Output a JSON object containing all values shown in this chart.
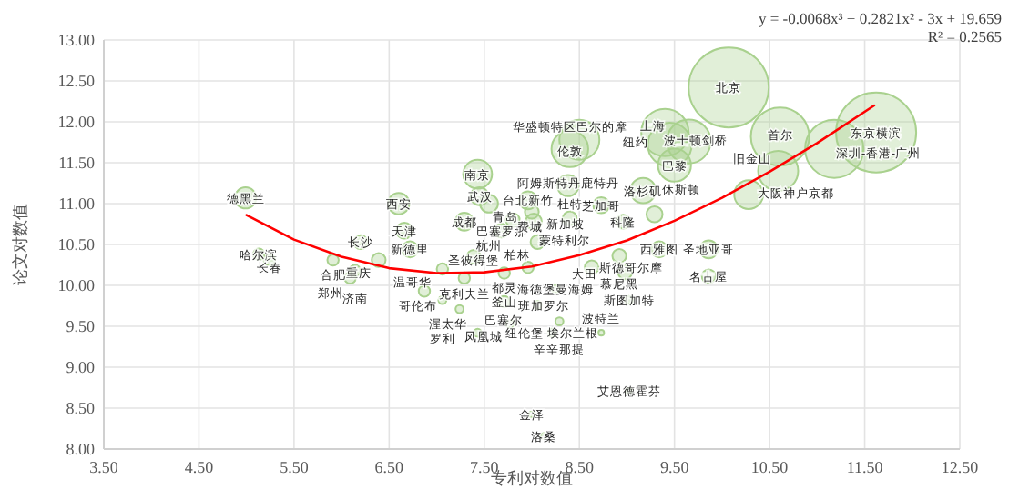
{
  "chart_data": {
    "type": "bubble",
    "xlabel": "专利对数值",
    "ylabel": "论文对数值",
    "xlim": [
      3.5,
      12.5
    ],
    "ylim": [
      8,
      13
    ],
    "xticks": [
      {
        "value": 3.5,
        "label": "3.50"
      },
      {
        "value": 4.5,
        "label": "4.50"
      },
      {
        "value": 5.5,
        "label": "5.50"
      },
      {
        "value": 6.5,
        "label": "6.50"
      },
      {
        "value": 7.5,
        "label": "7.50"
      },
      {
        "value": 8.5,
        "label": "8.50"
      },
      {
        "value": 9.5,
        "label": "9.50"
      },
      {
        "value": 10.5,
        "label": "10.50"
      },
      {
        "value": 11.5,
        "label": "11.50"
      },
      {
        "value": 12.5,
        "label": "12.50"
      }
    ],
    "yticks": [
      {
        "value": 8,
        "label": "8.00"
      },
      {
        "value": 8.5,
        "label": "8.50"
      },
      {
        "value": 9,
        "label": "9.00"
      },
      {
        "value": 9.5,
        "label": "9.50"
      },
      {
        "value": 10,
        "label": "10.00"
      },
      {
        "value": 10.5,
        "label": "10.50"
      },
      {
        "value": 11,
        "label": "11.00"
      },
      {
        "value": 11.5,
        "label": "11.50"
      },
      {
        "value": 12,
        "label": "12.00"
      },
      {
        "value": 12.5,
        "label": "12.50"
      },
      {
        "value": 13,
        "label": "13.00"
      }
    ],
    "grid": true,
    "series": [
      {
        "type": "bubble",
        "color": "#a9d18e",
        "x": [
          10.07,
          11.62,
          10.61,
          11.18,
          9.4,
          9.45,
          9.65,
          9.5,
          10.59,
          10.28,
          8.4,
          8.4,
          7.43,
          8.38,
          9.17,
          4.99,
          6.6,
          7.45,
          7.96,
          7.55,
          7.29,
          6.66,
          8.73,
          9.29,
          8.96,
          8.02,
          7.8,
          8.0,
          8.4,
          7.68,
          8.06,
          6.2,
          6.72,
          9.34,
          9.86,
          6.39,
          5.91,
          6.14,
          6.09,
          5.13,
          5.24,
          7.39,
          7.06,
          7.29,
          7.71,
          7.96,
          8.63,
          8.92,
          8.98,
          9.86,
          8.25,
          9.02,
          6.87,
          7.06,
          7.24,
          7.71,
          8.06,
          7.77,
          8.29,
          7.43,
          8.21,
          8.73,
          9.02,
          8.0,
          8.12,
          8.5
        ],
        "values": [
          12.42,
          11.87,
          11.82,
          11.67,
          11.87,
          11.72,
          11.76,
          11.47,
          11.4,
          11.11,
          11.67,
          11.94,
          11.36,
          11.22,
          11.16,
          11.07,
          11.0,
          11.09,
          11.04,
          11.0,
          10.78,
          10.67,
          10.98,
          10.87,
          10.78,
          10.78,
          10.8,
          10.9,
          10.82,
          10.67,
          10.53,
          10.53,
          10.44,
          10.44,
          10.44,
          10.31,
          10.31,
          10.18,
          10.09,
          10.38,
          10.31,
          10.35,
          10.2,
          10.09,
          10.15,
          10.22,
          10.22,
          10.36,
          10.16,
          10.11,
          9.96,
          9.82,
          9.93,
          9.82,
          9.71,
          9.8,
          9.76,
          9.53,
          9.56,
          9.42,
          9.42,
          9.42,
          8.71,
          8.42,
          8.16,
          11.78
        ],
        "sizes": [
          1,
          1,
          0.53,
          0.53,
          0.35,
          0.3,
          0.3,
          0.17,
          0.25,
          0.13,
          0.21,
          0.005,
          0.13,
          0.07,
          0.1,
          0.07,
          0.07,
          0.05,
          0.05,
          0.05,
          0.05,
          0.04,
          0.04,
          0.04,
          0.03,
          0.04,
          0.03,
          0.03,
          0.03,
          0.03,
          0.03,
          0.03,
          0.04,
          0.04,
          0.05,
          0.03,
          0.02,
          0.02,
          0.02,
          0.02,
          0.02,
          0.03,
          0.02,
          0.02,
          0.02,
          0.02,
          0.03,
          0.03,
          0.03,
          0.03,
          0.01,
          0.01,
          0.02,
          0.01,
          0.01,
          0.02,
          0.01,
          0.01,
          0.01,
          0.01,
          0.01,
          0.005,
          0.005,
          0.005,
          0.005,
          0.25
        ]
      },
      {
        "type": "line",
        "color": "#ff0000",
        "x": [
          5,
          5.5,
          6,
          6.5,
          7,
          7.5,
          8,
          8.5,
          9,
          9.5,
          10,
          10.5,
          11,
          11.6
        ],
        "values": [
          10.86,
          10.56,
          10.35,
          10.21,
          10.15,
          10.16,
          10.23,
          10.37,
          10.55,
          10.79,
          11.07,
          11.39,
          11.74,
          12.2
        ]
      }
    ],
    "annotations": [
      "y = -0.0068x³ + 0.2821x² - 3x + 19.659",
      "R² = 0.2565",
      {
        "text": "北京",
        "x": 10.07,
        "y": 12.42
      },
      {
        "text": "东京横滨",
        "x": 11.62,
        "y": 11.87
      },
      {
        "text": "首尔",
        "x": 10.61,
        "y": 11.85
      },
      {
        "text": "深圳-香港-广州",
        "x": 11.12,
        "y": 11.62
      },
      {
        "text": "纽约",
        "x": 9.09,
        "y": 11.93
      },
      {
        "text": "上海",
        "x": 9.27,
        "y": 11.78
      },
      {
        "text": "波士顿剑桥",
        "x": 9.72,
        "y": 11.78
      },
      {
        "text": "巴黎",
        "x": 9.5,
        "y": 11.47
      },
      {
        "text": "旧金山",
        "x": 10.59,
        "y": 11.4
      },
      {
        "text": "大阪神户京都",
        "x": 10.3,
        "y": 11.13
      },
      {
        "text": "伦敦",
        "x": 8.4,
        "y": 11.64
      },
      {
        "text": "华盛顿特区巴尔的摩",
        "x": 8.4,
        "y": 11.94
      },
      {
        "text": "南京",
        "x": 7.43,
        "y": 11.36
      },
      {
        "text": "阿姆斯特丹鹿特丹",
        "x": 8.38,
        "y": 11.26
      },
      {
        "text": "洛杉矶",
        "x": 9.17,
        "y": 11.16
      },
      {
        "text": "德黑兰",
        "x": 4.99,
        "y": 11.07
      },
      {
        "text": "西安",
        "x": 6.6,
        "y": 11.0
      },
      {
        "text": "武汉",
        "x": 7.45,
        "y": 11.09
      },
      {
        "text": "台北新竹",
        "x": 7.96,
        "y": 11.04
      },
      {
        "text": "杭州",
        "x": 7.55,
        "y": 10.98
      },
      {
        "text": "成都",
        "x": 7.29,
        "y": 10.78
      },
      {
        "text": "天津",
        "x": 6.66,
        "y": 10.67
      },
      {
        "text": "芝加哥",
        "x": 8.73,
        "y": 10.98
      },
      {
        "text": "休斯顿",
        "x": 9.29,
        "y": 10.87
      },
      {
        "text": "科隆",
        "x": 8.96,
        "y": 10.78
      },
      {
        "text": "新加坡",
        "x": 8.08,
        "y": 10.76
      },
      {
        "text": "青岛",
        "x": 7.72,
        "y": 10.84
      },
      {
        "text": "费城",
        "x": 7.98,
        "y": 10.9
      },
      {
        "text": "杜特",
        "x": 8.4,
        "y": 10.82
      },
      {
        "text": "巴塞罗那",
        "x": 7.68,
        "y": 10.67
      },
      {
        "text": "柏林",
        "x": 8.06,
        "y": 10.53
      },
      {
        "text": "长沙",
        "x": 6.2,
        "y": 10.53
      },
      {
        "text": "新德里",
        "x": 6.72,
        "y": 10.44
      },
      {
        "text": "西雅图",
        "x": 9.34,
        "y": 10.44
      },
      {
        "text": "圣地亚哥",
        "x": 9.86,
        "y": 10.44
      },
      {
        "text": "重庆",
        "x": 6.39,
        "y": 10.31
      },
      {
        "text": "合肥",
        "x": 5.91,
        "y": 10.31
      },
      {
        "text": "济南",
        "x": 6.14,
        "y": 10.18
      },
      {
        "text": "郑州",
        "x": 6.09,
        "y": 10.07
      },
      {
        "text": "哈尔滨",
        "x": 5.13,
        "y": 10.38
      },
      {
        "text": "长春",
        "x": 5.24,
        "y": 10.22
      },
      {
        "text": "圣彼得堡",
        "x": 7.39,
        "y": 10.31
      },
      {
        "text": "温哥华",
        "x": 7.02,
        "y": 10.2
      },
      {
        "text": "克利夫兰",
        "x": 7.29,
        "y": 10.08
      },
      {
        "text": "都灵",
        "x": 7.71,
        "y": 10.16
      },
      {
        "text": "蒙特利尔",
        "x": 8.0,
        "y": 10.24
      },
      {
        "text": "斯德哥尔摩",
        "x": 8.63,
        "y": 10.22
      },
      {
        "text": "慕尼黑",
        "x": 8.92,
        "y": 10.36
      },
      {
        "text": "大田",
        "x": 9.0,
        "y": 10.14
      },
      {
        "text": "名古屋",
        "x": 9.86,
        "y": 10.11
      },
      {
        "text": "海德堡曼海姆",
        "x": 8.25,
        "y": 9.96
      },
      {
        "text": "斯图加特",
        "x": 9.02,
        "y": 9.82
      },
      {
        "text": "哥伦布",
        "x": 6.8,
        "y": 9.93
      },
      {
        "text": "罗利",
        "x": 7.06,
        "y": 9.84
      },
      {
        "text": "渥太华",
        "x": 7.12,
        "y": 9.71
      },
      {
        "text": "釜山",
        "x": 7.71,
        "y": 9.8
      },
      {
        "text": "班加罗尔",
        "x": 8.12,
        "y": 9.76
      },
      {
        "text": "凤凰城",
        "x": 7.77,
        "y": 9.53
      },
      {
        "text": "辛辛那提",
        "x": 8.29,
        "y": 9.56
      },
      {
        "text": "巴塞尔",
        "x": 7.43,
        "y": 9.42
      },
      {
        "text": "纽伦堡-埃尔兰根",
        "x": 8.21,
        "y": 9.42
      },
      {
        "text": "波特兰",
        "x": 8.73,
        "y": 9.42
      },
      {
        "text": "艾恩德霍芬",
        "x": 9.02,
        "y": 8.71
      },
      {
        "text": "金泽",
        "x": 8.0,
        "y": 8.42
      },
      {
        "text": "洛桑",
        "x": 8.12,
        "y": 8.16
      }
    ]
  }
}
